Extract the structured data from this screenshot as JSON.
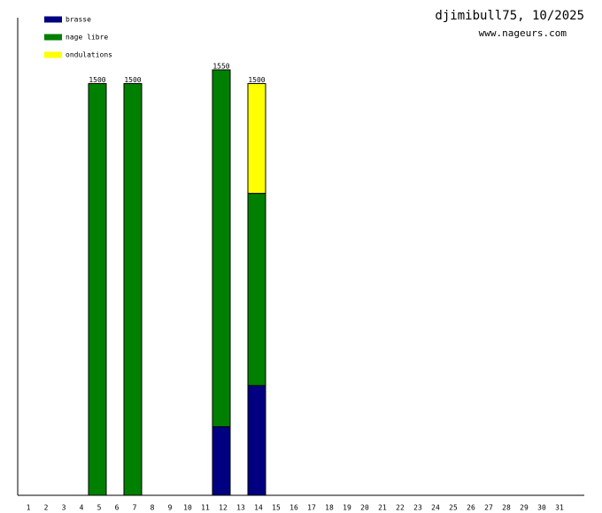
{
  "chart_data": {
    "type": "stacked-bar",
    "title": "djimibull75, 10/2025",
    "subtitle": "www.nageurs.com",
    "categories": [
      "1",
      "2",
      "3",
      "4",
      "5",
      "6",
      "7",
      "8",
      "9",
      "10",
      "11",
      "12",
      "13",
      "14",
      "15",
      "16",
      "17",
      "18",
      "19",
      "20",
      "21",
      "22",
      "23",
      "24",
      "25",
      "26",
      "27",
      "28",
      "29",
      "30",
      "31"
    ],
    "series": [
      {
        "name": "brasse",
        "color": "#000080",
        "values": [
          null,
          null,
          null,
          null,
          null,
          null,
          null,
          null,
          null,
          null,
          null,
          250,
          null,
          400,
          null,
          null,
          null,
          null,
          null,
          null,
          null,
          null,
          null,
          null,
          null,
          null,
          null,
          null,
          null,
          null,
          null
        ]
      },
      {
        "name": "nage libre",
        "color": "#008000",
        "values": [
          null,
          null,
          null,
          null,
          1500,
          null,
          1500,
          null,
          null,
          null,
          null,
          1300,
          null,
          700,
          null,
          null,
          null,
          null,
          null,
          null,
          null,
          null,
          null,
          null,
          null,
          null,
          null,
          null,
          null,
          null,
          null
        ]
      },
      {
        "name": "ondulations",
        "color": "#ffff00",
        "values": [
          null,
          null,
          null,
          null,
          null,
          null,
          null,
          null,
          null,
          null,
          null,
          null,
          null,
          400,
          null,
          null,
          null,
          null,
          null,
          null,
          null,
          null,
          null,
          null,
          null,
          null,
          null,
          null,
          null,
          null,
          null
        ]
      }
    ],
    "totals": [
      null,
      null,
      null,
      null,
      1500,
      null,
      1500,
      null,
      null,
      null,
      null,
      1550,
      null,
      1500,
      null,
      null,
      null,
      null,
      null,
      null,
      null,
      null,
      null,
      null,
      null,
      null,
      null,
      null,
      null,
      null,
      null
    ],
    "ylim": [
      0,
      1740
    ]
  }
}
